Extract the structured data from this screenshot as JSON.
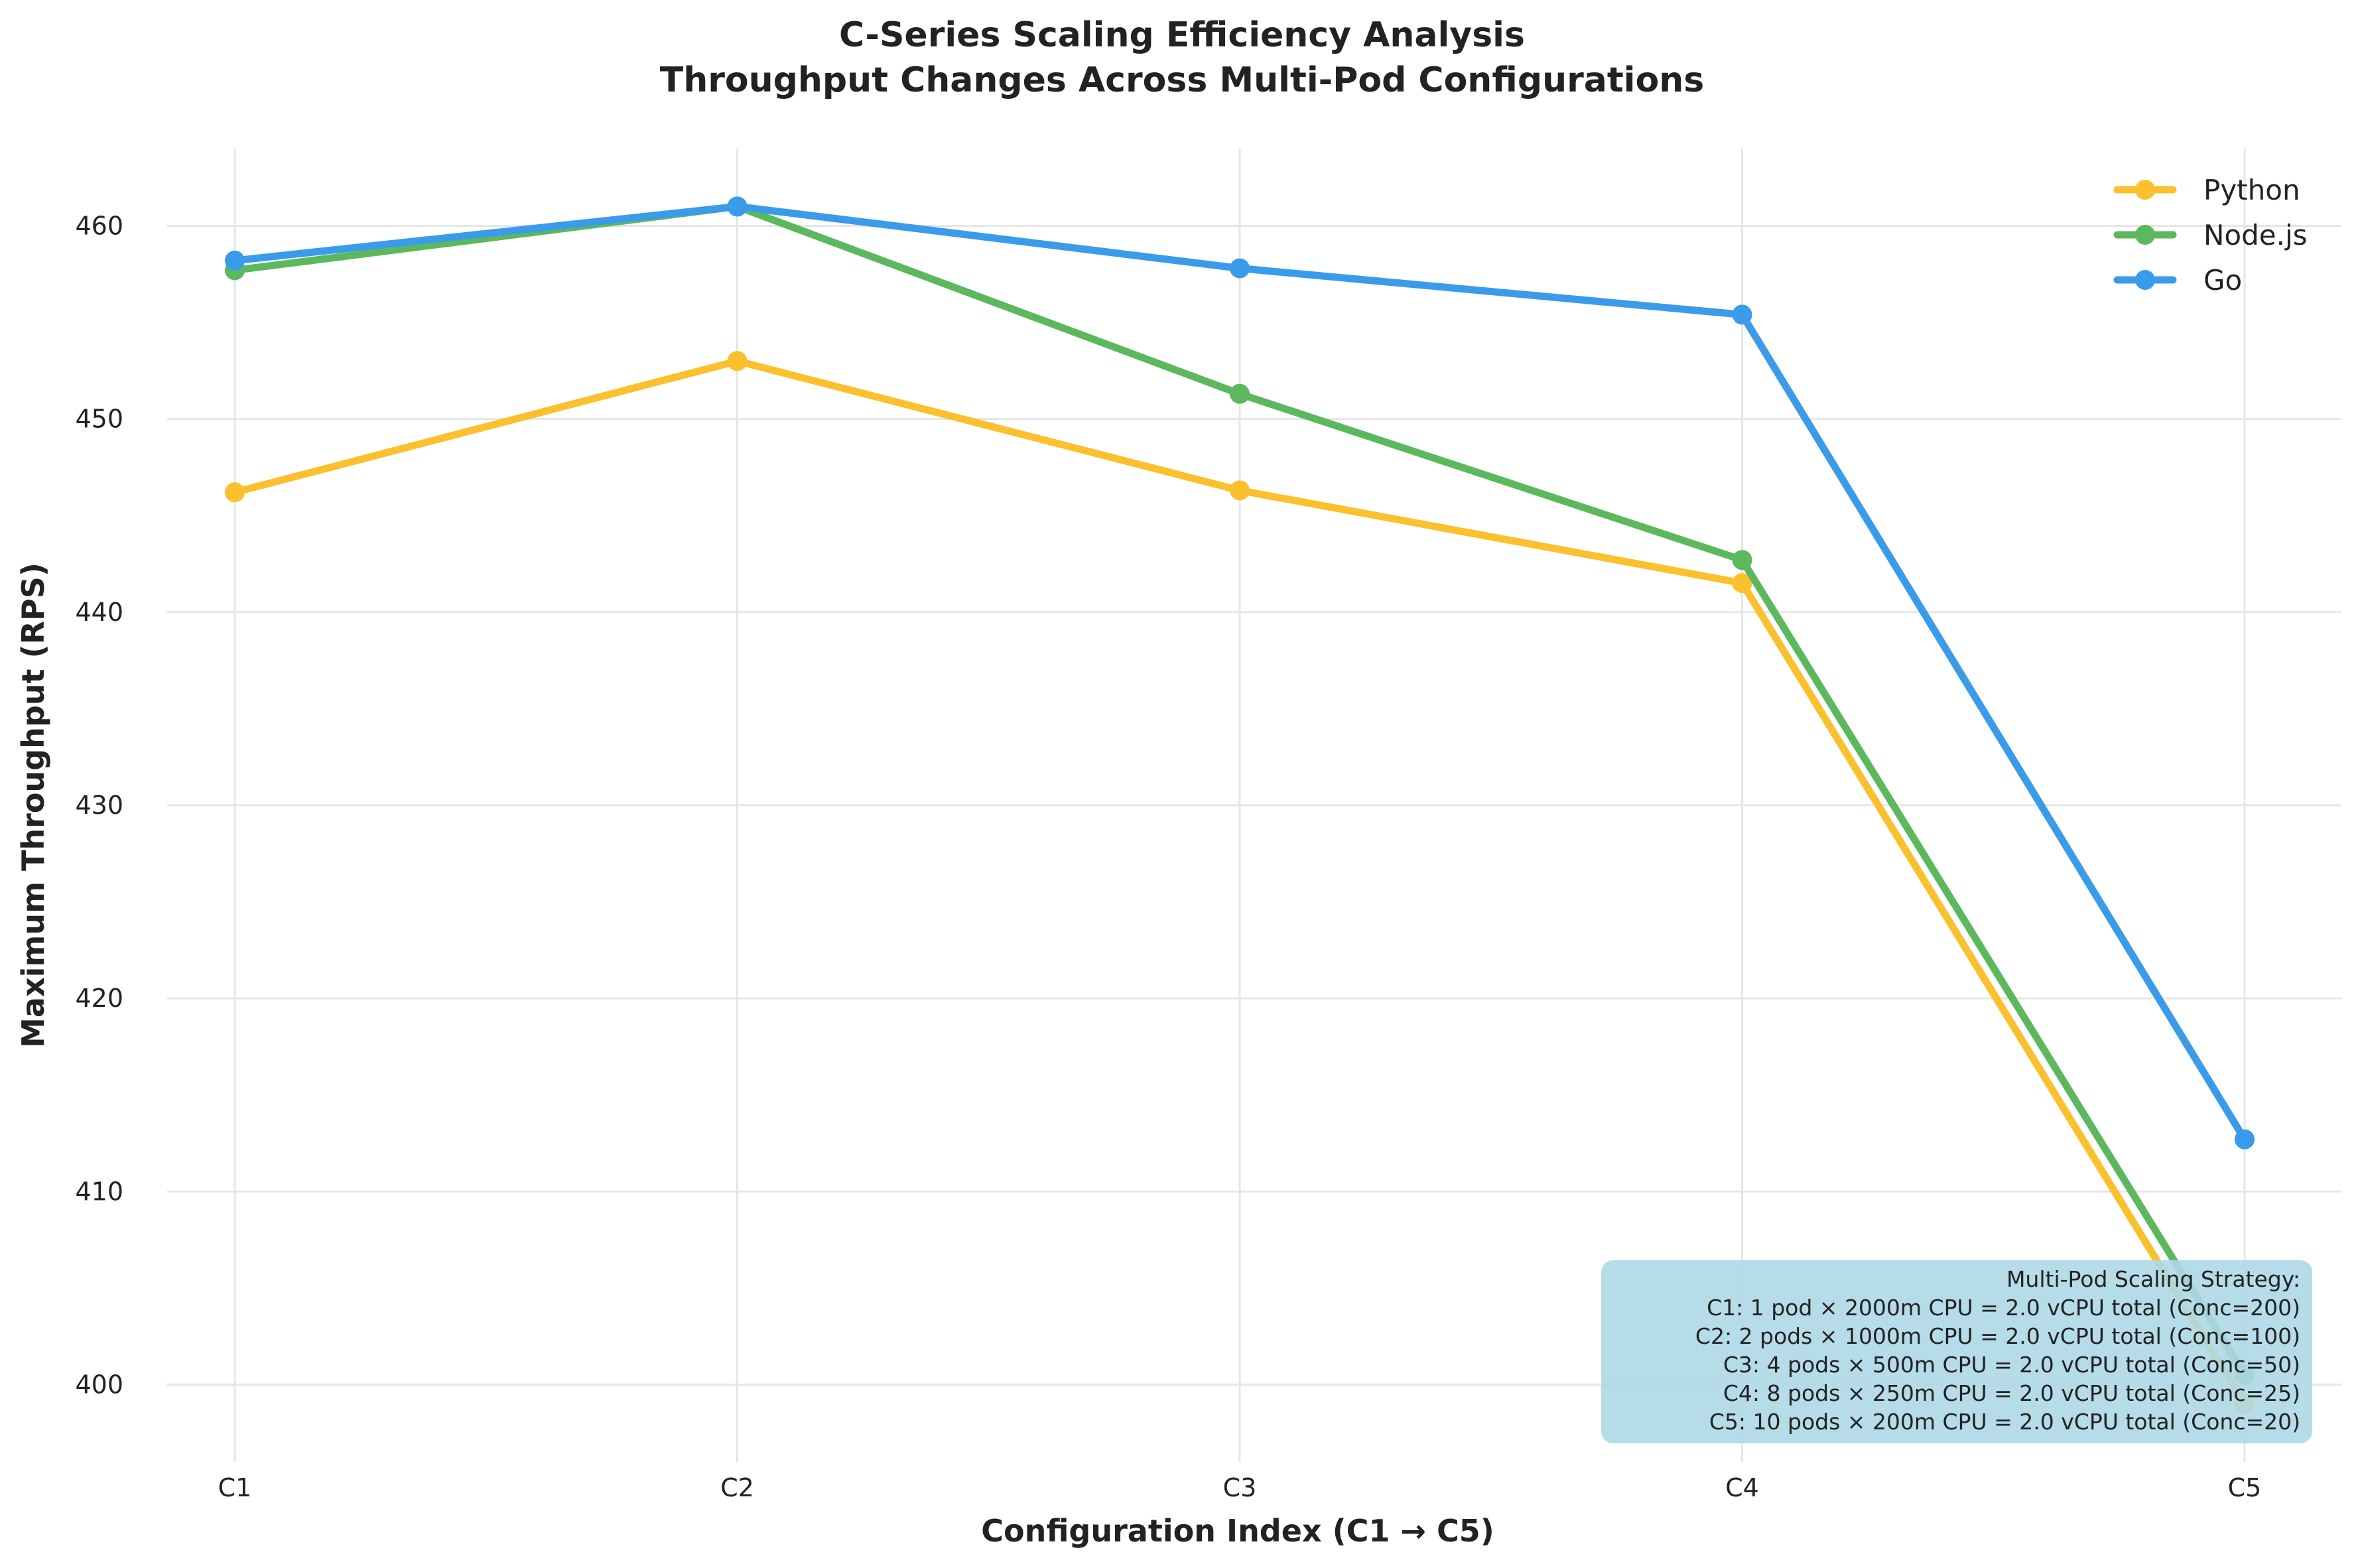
{
  "chart_data": {
    "type": "line",
    "title_line1": "C-Series Scaling Efficiency Analysis",
    "title_line2": "Throughput Changes Across Multi-Pod Configurations",
    "xlabel": "Configuration Index (C1 → C5)",
    "ylabel": "Maximum Throughput (RPS)",
    "categories": [
      "C1",
      "C2",
      "C3",
      "C4",
      "C5"
    ],
    "yticks": [
      "400",
      "410",
      "420",
      "430",
      "440",
      "450",
      "460"
    ],
    "ylim": [
      396,
      464
    ],
    "grid": true,
    "legend_position": "top-right",
    "series": [
      {
        "name": "Python",
        "color": "#FBC02D",
        "values": [
          446.2,
          453.0,
          446.3,
          441.5,
          399.0
        ]
      },
      {
        "name": "Node.js",
        "color": "#5CB85C",
        "values": [
          457.7,
          461.0,
          451.3,
          442.7,
          400.5
        ]
      },
      {
        "name": "Go",
        "color": "#3A9BEA",
        "values": [
          458.2,
          461.0,
          457.8,
          455.4,
          412.7
        ]
      }
    ],
    "annotation": {
      "lines": [
        "Multi-Pod Scaling Strategy:",
        "C1: 1 pod × 2000m CPU = 2.0 vCPU total (Conc=200)",
        "C2: 2 pods × 1000m CPU = 2.0 vCPU total (Conc=100)",
        "C3: 4 pods × 500m CPU = 2.0 vCPU total (Conc=50)",
        "C4: 8 pods × 250m CPU = 2.0 vCPU total (Conc=25)",
        "C5: 10 pods × 200m CPU = 2.0 vCPU total (Conc=20)"
      ],
      "background": "#ADD8E6"
    }
  }
}
